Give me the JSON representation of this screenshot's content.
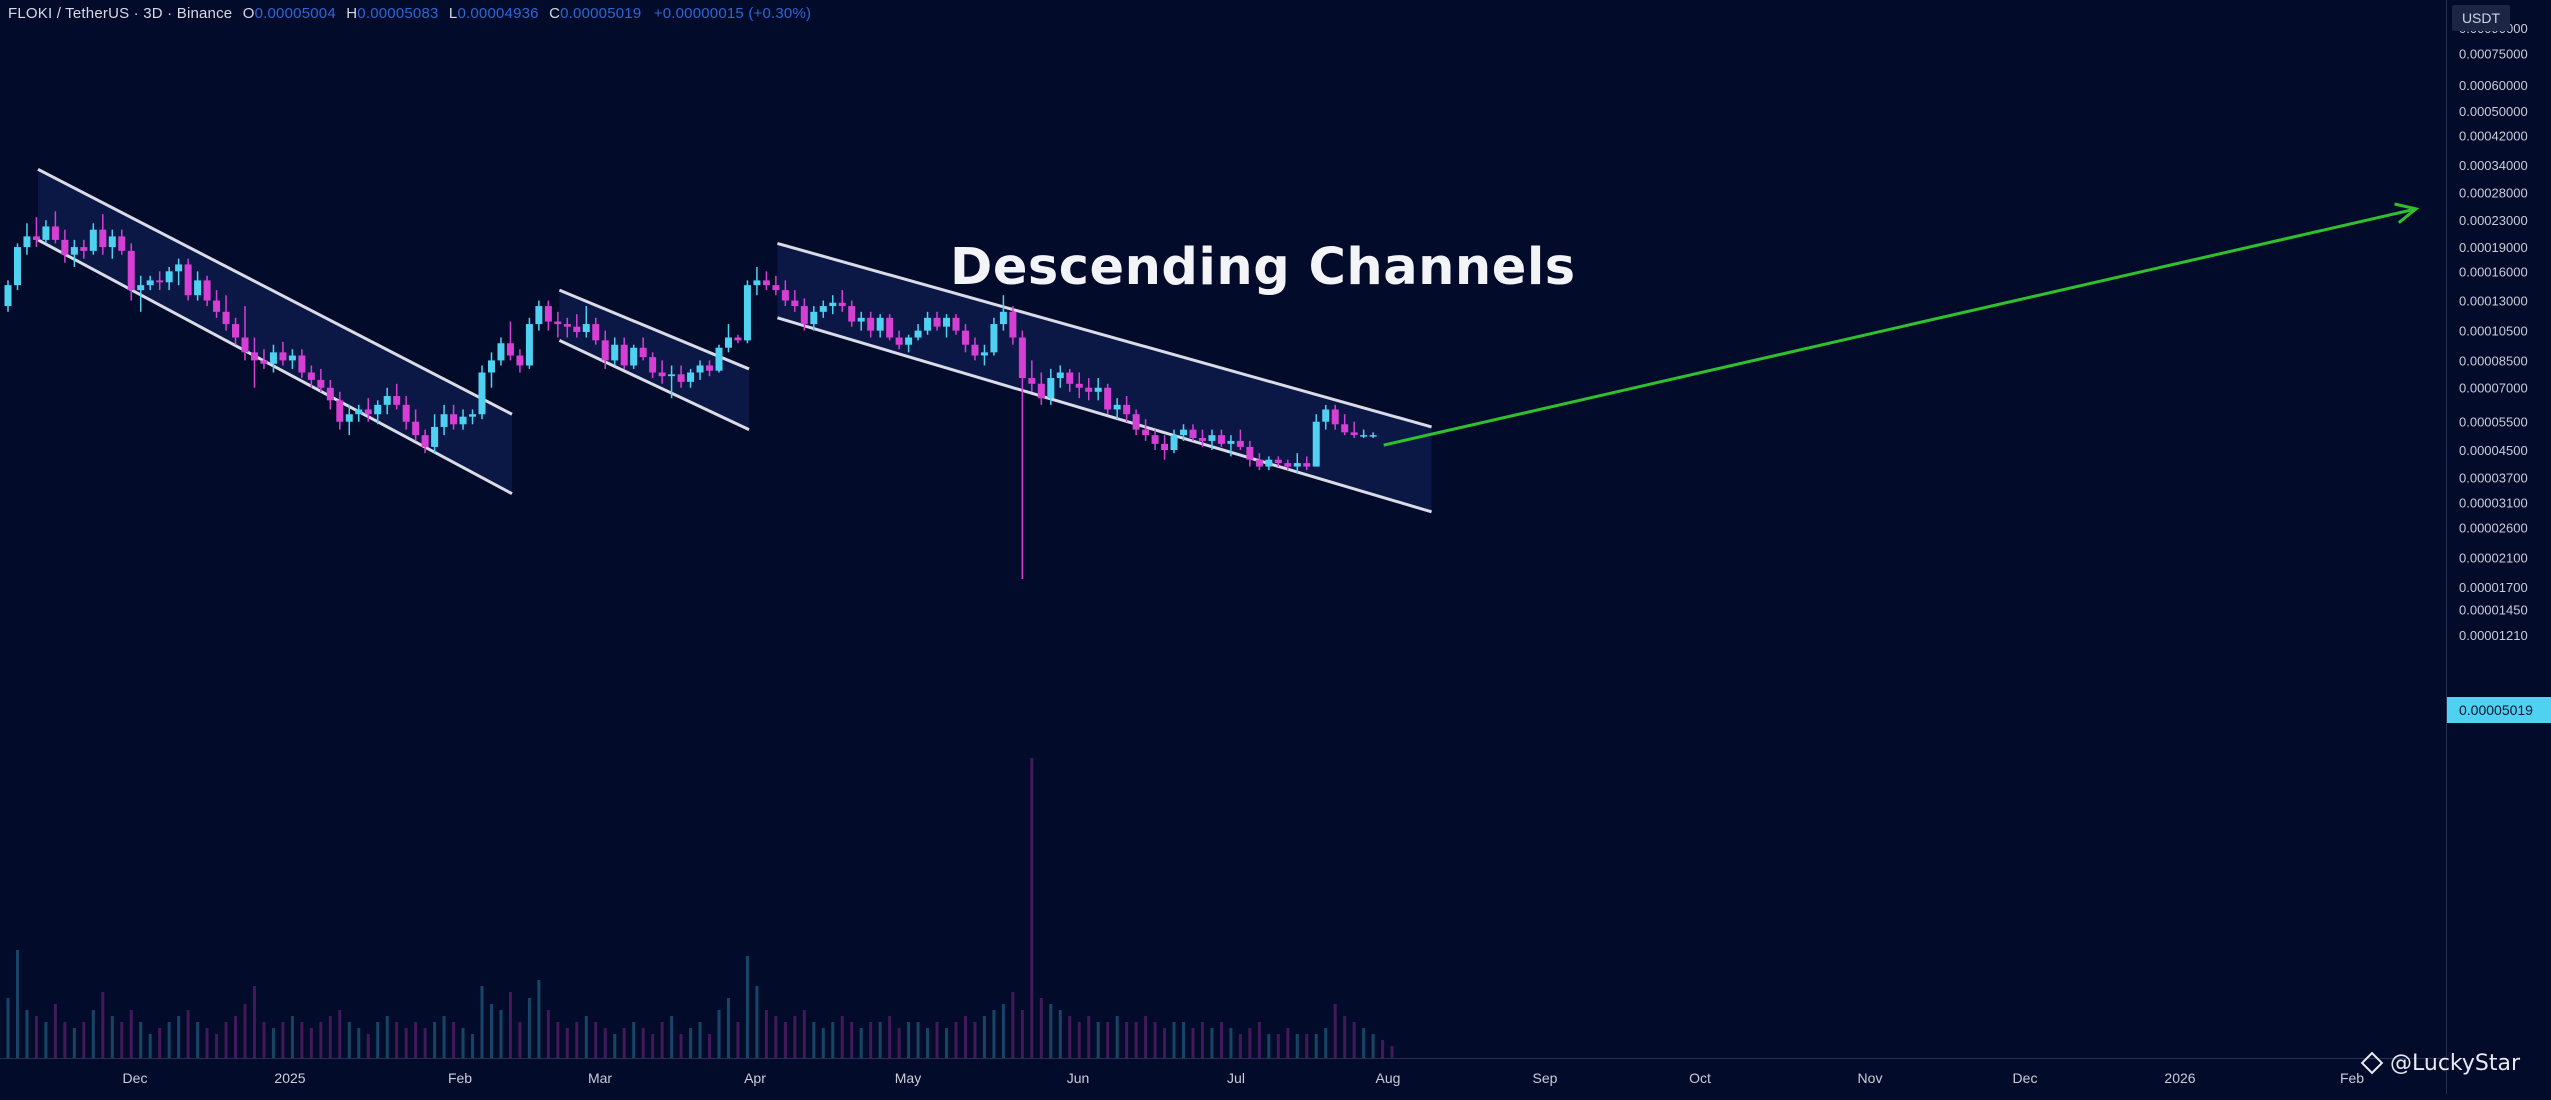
{
  "legend": {
    "symbol": "FLOKI / TetherUS · 3D · Binance",
    "open_label": "O",
    "open_value": "0.00005004",
    "high_label": "H",
    "high_value": "0.00005083",
    "low_label": "L",
    "low_value": "0.00004936",
    "close_label": "C",
    "close_value": "0.00005019",
    "change": "+0.00000015 (+0.30%)"
  },
  "unit_badge": "USDT",
  "current_price": "0.00005019",
  "watermark": "@LuckyStar",
  "colors": {
    "background": "#030b2b",
    "bullish": "#4fd2f2",
    "bearish": "#d63fd3",
    "channel_line": "#d9dbe6",
    "channel_fill": "#0d1a4a",
    "projection_arrow": "#2fc12b"
  },
  "chart_data": {
    "type": "candlestick",
    "title": "Descending Channels",
    "price_scale": "log",
    "y_ticks": [
      "0.00090000",
      "0.00075000",
      "0.00060000",
      "0.00050000",
      "0.00042000",
      "0.00034000",
      "0.00028000",
      "0.00023000",
      "0.00019000",
      "0.00016000",
      "0.00013000",
      "0.00010500",
      "0.00008500",
      "0.00007000",
      "0.00005500",
      "0.00004500",
      "0.00003700",
      "0.00003100",
      "0.00002600",
      "0.00002100",
      "0.00001700",
      "0.00001450",
      "0.00001210"
    ],
    "x_ticks": [
      "Dec",
      "2025",
      "Feb",
      "Mar",
      "Apr",
      "May",
      "Jun",
      "Jul",
      "Aug",
      "Sep",
      "Oct",
      "Nov",
      "Dec",
      "2026",
      "Feb"
    ],
    "candles_approx": [
      [
        0.000125,
        0.00015,
        0.00012,
        0.000145
      ],
      [
        0.000145,
        0.000195,
        0.00014,
        0.00019
      ],
      [
        0.00019,
        0.000225,
        0.00018,
        0.000205
      ],
      [
        0.000205,
        0.000235,
        0.00019,
        0.0002
      ],
      [
        0.0002,
        0.00023,
        0.000195,
        0.00022
      ],
      [
        0.00022,
        0.000245,
        0.000195,
        0.0002
      ],
      [
        0.0002,
        0.000215,
        0.00017,
        0.00018
      ],
      [
        0.00018,
        0.0002,
        0.000165,
        0.00019
      ],
      [
        0.00019,
        0.0002,
        0.000175,
        0.000185
      ],
      [
        0.000185,
        0.000225,
        0.00018,
        0.000215
      ],
      [
        0.000215,
        0.00024,
        0.00018,
        0.00019
      ],
      [
        0.00019,
        0.000215,
        0.000175,
        0.000205
      ],
      [
        0.000205,
        0.000215,
        0.00018,
        0.000185
      ],
      [
        0.000185,
        0.000195,
        0.00013,
        0.00014
      ],
      [
        0.00014,
        0.000155,
        0.00012,
        0.000145
      ],
      [
        0.000145,
        0.000155,
        0.00014,
        0.00015
      ],
      [
        0.00015,
        0.00016,
        0.00014,
        0.000148
      ],
      [
        0.000148,
        0.000165,
        0.00014,
        0.00016
      ],
      [
        0.00016,
        0.000175,
        0.000145,
        0.000168
      ],
      [
        0.000168,
        0.000175,
        0.00013,
        0.000135
      ],
      [
        0.000135,
        0.00016,
        0.00013,
        0.00015
      ],
      [
        0.00015,
        0.000155,
        0.000125,
        0.00013
      ],
      [
        0.00013,
        0.00014,
        0.000115,
        0.00012
      ],
      [
        0.00012,
        0.000135,
        0.000105,
        0.00011
      ],
      [
        0.00011,
        0.000115,
        9.5e-05,
        0.0001
      ],
      [
        0.0001,
        0.000125,
        8.5e-05,
        9e-05
      ],
      [
        9e-05,
        0.0001,
        7e-05,
        8.5e-05
      ],
      [
        8.5e-05,
        9.2e-05,
        8e-05,
        8.3e-05
      ],
      [
        8.3e-05,
        9.5e-05,
        7.8e-05,
        9e-05
      ],
      [
        9e-05,
        9.7e-05,
        8.2e-05,
        8.5e-05
      ],
      [
        8.5e-05,
        9.2e-05,
        8e-05,
        8.8e-05
      ],
      [
        8.8e-05,
        9.2e-05,
        7.5e-05,
        7.8e-05
      ],
      [
        7.8e-05,
        8.2e-05,
        7e-05,
        7.4e-05
      ],
      [
        7.4e-05,
        8e-05,
        6.8e-05,
        7e-05
      ],
      [
        7e-05,
        7.4e-05,
        6e-05,
        6.4e-05
      ],
      [
        6.4e-05,
        6.8e-05,
        5.2e-05,
        5.5e-05
      ],
      [
        5.5e-05,
        6.2e-05,
        5e-05,
        5.8e-05
      ],
      [
        5.8e-05,
        6.2e-05,
        5.5e-05,
        6e-05
      ],
      [
        6e-05,
        6.5e-05,
        5.5e-05,
        5.8e-05
      ],
      [
        5.8e-05,
        6.4e-05,
        5.4e-05,
        6.2e-05
      ],
      [
        6.2e-05,
        7e-05,
        5.8e-05,
        6.6e-05
      ],
      [
        6.6e-05,
        7.2e-05,
        6e-05,
        6.2e-05
      ],
      [
        6.2e-05,
        6.6e-05,
        5.2e-05,
        5.5e-05
      ],
      [
        5.5e-05,
        6e-05,
        4.8e-05,
        5e-05
      ],
      [
        5e-05,
        5.2e-05,
        4.4e-05,
        4.6e-05
      ],
      [
        4.6e-05,
        5.8e-05,
        4.4e-05,
        5.3e-05
      ],
      [
        5.3e-05,
        6.2e-05,
        5e-05,
        5.8e-05
      ],
      [
        5.8e-05,
        6.2e-05,
        5.2e-05,
        5.4e-05
      ],
      [
        5.4e-05,
        6e-05,
        5.2e-05,
        5.7e-05
      ],
      [
        5.7e-05,
        6e-05,
        5.4e-05,
        5.8e-05
      ],
      [
        5.8e-05,
        8.2e-05,
        5.6e-05,
        7.8e-05
      ],
      [
        7.8e-05,
        9e-05,
        7e-05,
        8.5e-05
      ],
      [
        8.5e-05,
        0.0001,
        8.2e-05,
        9.6e-05
      ],
      [
        9.6e-05,
        0.000112,
        8.5e-05,
        8.8e-05
      ],
      [
        8.8e-05,
        9.2e-05,
        7.8e-05,
        8.2e-05
      ],
      [
        8.2e-05,
        0.000115,
        8e-05,
        0.00011
      ],
      [
        0.00011,
        0.00013,
        0.000105,
        0.000125
      ],
      [
        0.000125,
        0.00013,
        0.000105,
        0.000112
      ],
      [
        0.000112,
        0.00012,
        0.0001,
        0.00011
      ],
      [
        0.00011,
        0.000115,
        0.0001,
        0.000108
      ],
      [
        0.000108,
        0.000118,
        0.0001,
        0.000104
      ],
      [
        0.000104,
        0.000125,
        0.0001,
        0.00011
      ],
      [
        0.00011,
        0.000115,
        9.5e-05,
        9.8e-05
      ],
      [
        9.8e-05,
        0.000105,
        8e-05,
        8.5e-05
      ],
      [
        8.5e-05,
        0.0001,
        8.2e-05,
        9.5e-05
      ],
      [
        9.5e-05,
        0.0001,
        8e-05,
        8.2e-05
      ],
      [
        8.2e-05,
        9.5e-05,
        8e-05,
        9.3e-05
      ],
      [
        9.3e-05,
        0.0001,
        8.5e-05,
        8.7e-05
      ],
      [
        8.7e-05,
        9e-05,
        7.5e-05,
        7.8e-05
      ],
      [
        7.8e-05,
        8.5e-05,
        7.2e-05,
        7.6e-05
      ],
      [
        7.6e-05,
        8.2e-05,
        6.5e-05,
        7.7e-05
      ],
      [
        7.7e-05,
        8.2e-05,
        7e-05,
        7.3e-05
      ],
      [
        7.3e-05,
        8e-05,
        7e-05,
        7.8e-05
      ],
      [
        7.8e-05,
        8.5e-05,
        7.4e-05,
        8.2e-05
      ],
      [
        8.2e-05,
        8.5e-05,
        7.6e-05,
        7.9e-05
      ],
      [
        7.9e-05,
        9.5e-05,
        7.8e-05,
        9.3e-05
      ],
      [
        9.3e-05,
        0.00011,
        9e-05,
        0.0001
      ],
      [
        0.0001,
        0.000102,
        9.6e-05,
        9.8e-05
      ],
      [
        9.8e-05,
        0.00015,
        9.6e-05,
        0.000145
      ],
      [
        0.000145,
        0.000165,
        0.000135,
        0.00015
      ],
      [
        0.00015,
        0.00016,
        0.00014,
        0.000145
      ],
      [
        0.000145,
        0.000155,
        0.000135,
        0.00014
      ],
      [
        0.00014,
        0.00015,
        0.000125,
        0.00013
      ],
      [
        0.00013,
        0.00014,
        0.00012,
        0.000125
      ],
      [
        0.000125,
        0.000132,
        0.000105,
        0.00011
      ],
      [
        0.00011,
        0.000125,
        0.000105,
        0.00012
      ],
      [
        0.00012,
        0.00013,
        0.000115,
        0.000125
      ],
      [
        0.000125,
        0.000135,
        0.000118,
        0.000128
      ],
      [
        0.000128,
        0.00014,
        0.00012,
        0.000125
      ],
      [
        0.000125,
        0.00013,
        0.000108,
        0.000112
      ],
      [
        0.000112,
        0.00012,
        0.000105,
        0.000115
      ],
      [
        0.000115,
        0.00012,
        0.0001,
        0.000105
      ],
      [
        0.000105,
        0.000118,
        0.0001,
        0.000115
      ],
      [
        0.000115,
        0.000118,
        9.8e-05,
        0.0001
      ],
      [
        0.0001,
        0.000105,
        9.2e-05,
        9.5e-05
      ],
      [
        9.5e-05,
        0.000102,
        9e-05,
        0.0001
      ],
      [
        0.0001,
        0.00011,
        9.8e-05,
        0.000105
      ],
      [
        0.000105,
        0.00012,
        0.000102,
        0.000115
      ],
      [
        0.000115,
        0.00012,
        0.000105,
        0.000108
      ],
      [
        0.000108,
        0.000118,
        0.0001,
        0.000115
      ],
      [
        0.000115,
        0.000118,
        0.000102,
        0.000105
      ],
      [
        0.000105,
        0.00011,
        9e-05,
        9.5e-05
      ],
      [
        9.5e-05,
        0.0001,
        8.5e-05,
        8.8e-05
      ],
      [
        8.8e-05,
        9.5e-05,
        8.2e-05,
        9e-05
      ],
      [
        9e-05,
        0.000115,
        8.8e-05,
        0.00011
      ],
      [
        0.00011,
        0.000135,
        0.000105,
        0.00012
      ],
      [
        0.00012,
        0.000125,
        9.5e-05,
        0.0001
      ],
      [
        0.0001,
        0.000105,
        1.8e-05,
        7.5e-05
      ],
      [
        7.5e-05,
        8.5e-05,
        6.8e-05,
        7.2e-05
      ],
      [
        7.2e-05,
        7.8e-05,
        6.2e-05,
        6.5e-05
      ],
      [
        6.5e-05,
        8e-05,
        6.2e-05,
        7.5e-05
      ],
      [
        7.5e-05,
        8.2e-05,
        7e-05,
        7.8e-05
      ],
      [
        7.8e-05,
        8e-05,
        6.8e-05,
        7.2e-05
      ],
      [
        7.2e-05,
        7.8e-05,
        6.5e-05,
        7e-05
      ],
      [
        7e-05,
        7.5e-05,
        6.4e-05,
        6.8e-05
      ],
      [
        6.8e-05,
        7.5e-05,
        6.4e-05,
        7e-05
      ],
      [
        7e-05,
        7.2e-05,
        5.8e-05,
        6e-05
      ],
      [
        6e-05,
        6.5e-05,
        5.6e-05,
        6.2e-05
      ],
      [
        6.2e-05,
        6.6e-05,
        5.5e-05,
        5.8e-05
      ],
      [
        5.8e-05,
        6e-05,
        5e-05,
        5.2e-05
      ],
      [
        5.2e-05,
        5.6e-05,
        4.8e-05,
        5e-05
      ],
      [
        5e-05,
        5.2e-05,
        4.5e-05,
        4.7e-05
      ],
      [
        4.7e-05,
        5e-05,
        4.2e-05,
        4.5e-05
      ],
      [
        4.5e-05,
        5.2e-05,
        4.4e-05,
        5e-05
      ],
      [
        5e-05,
        5.4e-05,
        4.8e-05,
        5.2e-05
      ],
      [
        5.2e-05,
        5.4e-05,
        4.8e-05,
        4.9e-05
      ],
      [
        4.9e-05,
        5.2e-05,
        4.6e-05,
        4.8e-05
      ],
      [
        4.8e-05,
        5.2e-05,
        4.5e-05,
        5e-05
      ],
      [
        5e-05,
        5.2e-05,
        4.6e-05,
        4.7e-05
      ],
      [
        4.7e-05,
        5e-05,
        4.3e-05,
        4.8e-05
      ],
      [
        4.8e-05,
        5.2e-05,
        4.5e-05,
        4.6e-05
      ],
      [
        4.6e-05,
        4.8e-05,
        4e-05,
        4.2e-05
      ],
      [
        4.2e-05,
        4.4e-05,
        3.9e-05,
        4e-05
      ],
      [
        4e-05,
        4.3e-05,
        3.9e-05,
        4.2e-05
      ],
      [
        4.2e-05,
        4.3e-05,
        4e-05,
        4.1e-05
      ],
      [
        4.1e-05,
        4.2e-05,
        3.9e-05,
        4e-05
      ],
      [
        4e-05,
        4.4e-05,
        3.8e-05,
        4.1e-05
      ],
      [
        4.1e-05,
        4.3e-05,
        3.9e-05,
        4e-05
      ],
      [
        4e-05,
        5.8e-05,
        4e-05,
        5.5e-05
      ],
      [
        5.5e-05,
        6.2e-05,
        5.2e-05,
        6e-05
      ],
      [
        6e-05,
        6.2e-05,
        5.2e-05,
        5.4e-05
      ],
      [
        5.4e-05,
        5.8e-05,
        5e-05,
        5.1e-05
      ],
      [
        5.1e-05,
        5.5e-05,
        4.9e-05,
        5e-05
      ],
      [
        5e-05,
        5.2e-05,
        4.9e-05,
        5e-05
      ],
      [
        5e-05,
        5.1e-05,
        4.9e-05,
        5e-05
      ]
    ],
    "channels": [
      {
        "start": {
          "candle": 0,
          "price": 0.00033
        },
        "end": {
          "candle": 50,
          "price": 5.8e-05
        },
        "lower_start": 0.0002,
        "lower_end": 3.3e-05
      },
      {
        "start": {
          "candle": 55,
          "price": 0.00014
        },
        "end": {
          "candle": 75,
          "price": 8e-05
        },
        "lower_start": 9.8e-05,
        "lower_end": 5.2e-05
      },
      {
        "start": {
          "candle": 78,
          "price": 0.000195
        },
        "end": {
          "candle": 147,
          "price": 5.3e-05
        },
        "lower_start": 0.000115,
        "lower_end": 2.9e-05
      }
    ],
    "projection": {
      "from_candle": 143,
      "from_price": 5e-05,
      "to_price": 0.00026
    },
    "volumes_approx": [
      0.5,
      0.9,
      0.4,
      0.35,
      0.3,
      0.45,
      0.3,
      0.25,
      0.3,
      0.4,
      0.55,
      0.35,
      0.3,
      0.4,
      0.3,
      0.2,
      0.25,
      0.3,
      0.35,
      0.4,
      0.3,
      0.25,
      0.2,
      0.3,
      0.35,
      0.45,
      0.6,
      0.3,
      0.25,
      0.3,
      0.35,
      0.3,
      0.25,
      0.3,
      0.35,
      0.4,
      0.3,
      0.25,
      0.2,
      0.3,
      0.35,
      0.3,
      0.25,
      0.3,
      0.25,
      0.3,
      0.35,
      0.3,
      0.25,
      0.2,
      0.6,
      0.45,
      0.4,
      0.55,
      0.3,
      0.5,
      0.65,
      0.4,
      0.3,
      0.25,
      0.3,
      0.35,
      0.3,
      0.25,
      0.2,
      0.25,
      0.3,
      0.25,
      0.2,
      0.3,
      0.35,
      0.2,
      0.25,
      0.3,
      0.2,
      0.4,
      0.5,
      0.3,
      0.85,
      0.6,
      0.4,
      0.35,
      0.3,
      0.35,
      0.4,
      0.3,
      0.25,
      0.3,
      0.35,
      0.3,
      0.25,
      0.3,
      0.3,
      0.35,
      0.25,
      0.3,
      0.3,
      0.25,
      0.3,
      0.25,
      0.3,
      0.35,
      0.3,
      0.35,
      0.4,
      0.45,
      0.55,
      0.4,
      2.5,
      0.5,
      0.45,
      0.4,
      0.35,
      0.3,
      0.35,
      0.3,
      0.3,
      0.35,
      0.3,
      0.3,
      0.35,
      0.3,
      0.25,
      0.3,
      0.3,
      0.25,
      0.3,
      0.25,
      0.3,
      0.25,
      0.2,
      0.25,
      0.3,
      0.2,
      0.2,
      0.25,
      0.2,
      0.2,
      0.2,
      0.25,
      0.45,
      0.35,
      0.3,
      0.25,
      0.2,
      0.15,
      0.1
    ]
  }
}
